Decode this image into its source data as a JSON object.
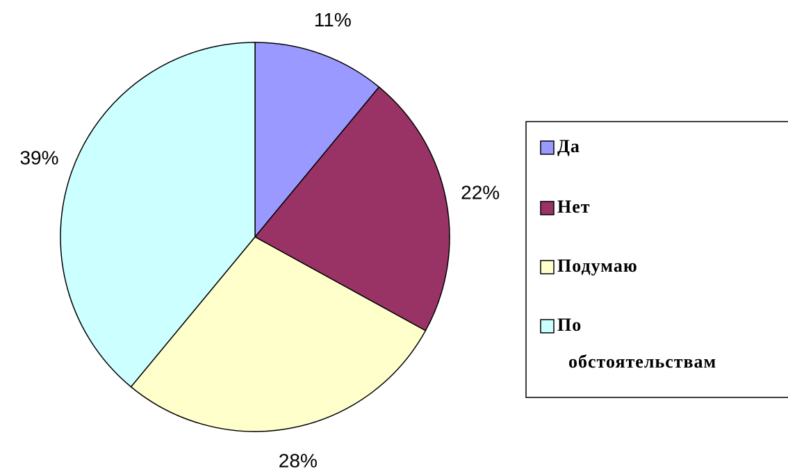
{
  "chart_data": {
    "type": "pie",
    "categories": [
      "Да",
      "Нет",
      "Подумаю",
      "По обстоятельствам"
    ],
    "values": [
      11,
      22,
      28,
      39
    ],
    "value_labels": [
      "11%",
      "22%",
      "28%",
      "39%"
    ],
    "colors": [
      "#9999ff",
      "#993366",
      "#ffffcc",
      "#ccffff"
    ],
    "legend": "right"
  }
}
